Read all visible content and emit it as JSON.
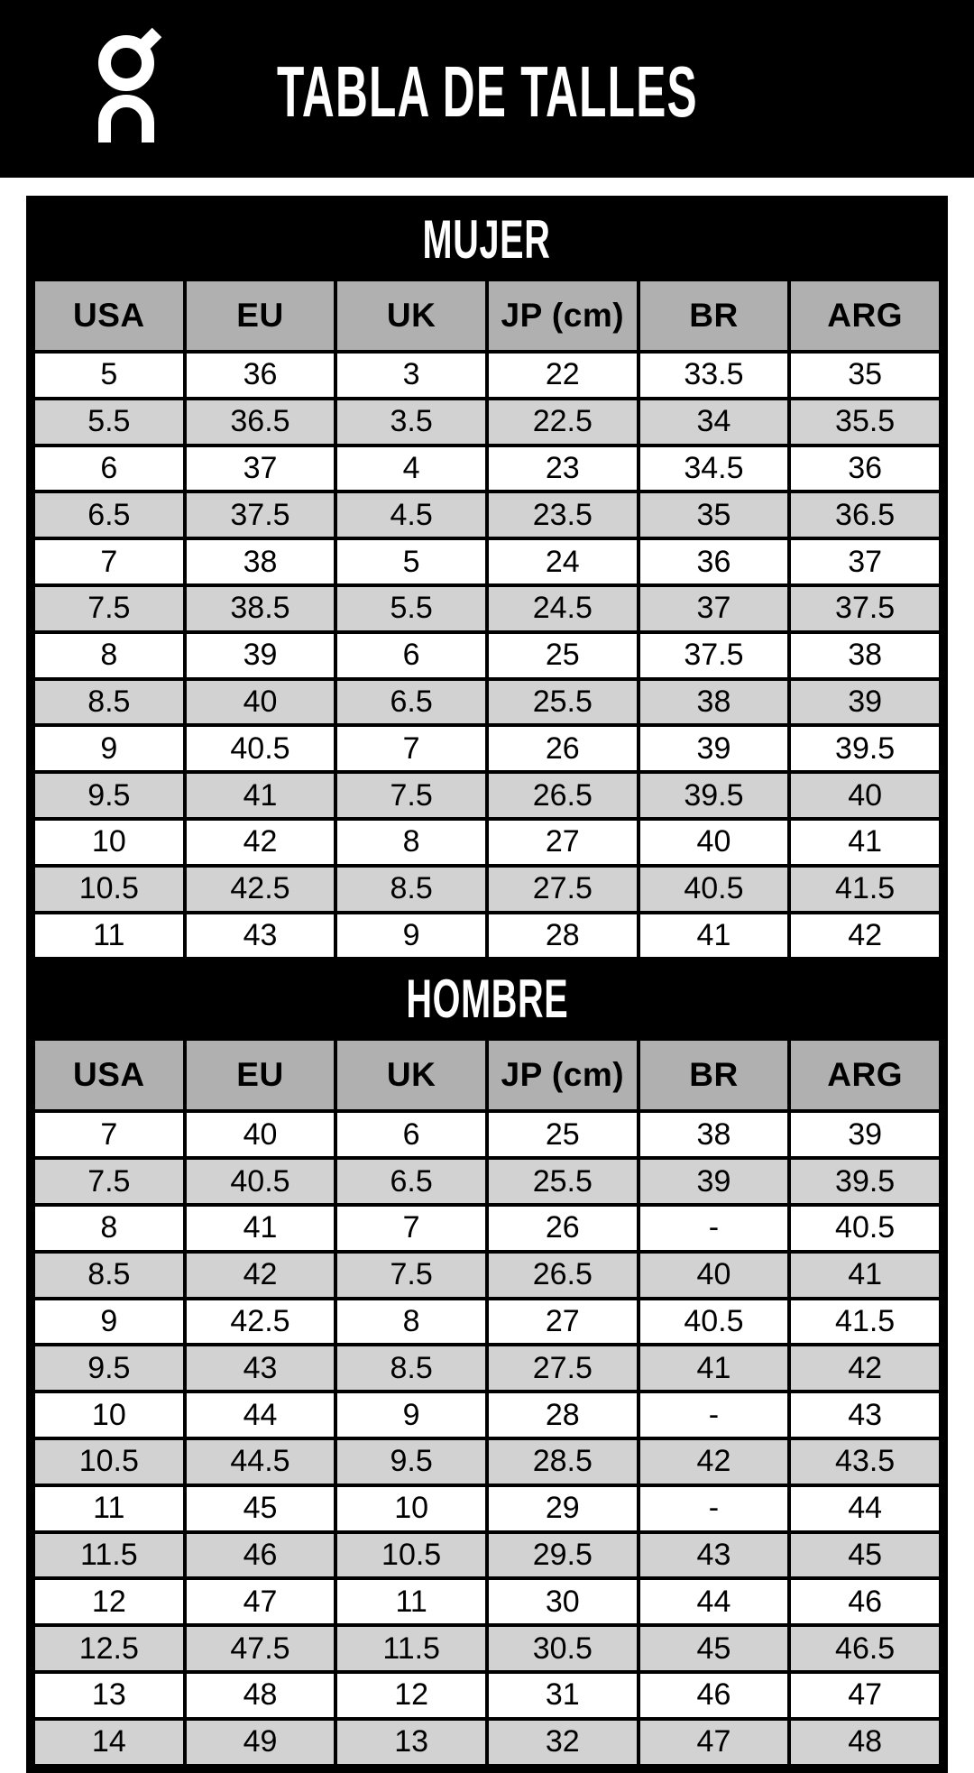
{
  "header": {
    "title": "TABLA DE TALLES",
    "logo_icon": "on-logo-icon"
  },
  "colors": {
    "background": "#ffffff",
    "bar_black": "#000000",
    "header_cell_gray": "#b0b0b0",
    "alt_row_gray": "#d2d2d2",
    "text_light": "#ffffff",
    "text_dark": "#000000"
  },
  "chart_data": [
    {
      "type": "table",
      "title": "MUJER",
      "columns": [
        "USA",
        "EU",
        "UK",
        "JP (cm)",
        "BR",
        "ARG"
      ],
      "rows": [
        [
          "5",
          "36",
          "3",
          "22",
          "33.5",
          "35"
        ],
        [
          "5.5",
          "36.5",
          "3.5",
          "22.5",
          "34",
          "35.5"
        ],
        [
          "6",
          "37",
          "4",
          "23",
          "34.5",
          "36"
        ],
        [
          "6.5",
          "37.5",
          "4.5",
          "23.5",
          "35",
          "36.5"
        ],
        [
          "7",
          "38",
          "5",
          "24",
          "36",
          "37"
        ],
        [
          "7.5",
          "38.5",
          "5.5",
          "24.5",
          "37",
          "37.5"
        ],
        [
          "8",
          "39",
          "6",
          "25",
          "37.5",
          "38"
        ],
        [
          "8.5",
          "40",
          "6.5",
          "25.5",
          "38",
          "39"
        ],
        [
          "9",
          "40.5",
          "7",
          "26",
          "39",
          "39.5"
        ],
        [
          "9.5",
          "41",
          "7.5",
          "26.5",
          "39.5",
          "40"
        ],
        [
          "10",
          "42",
          "8",
          "27",
          "40",
          "41"
        ],
        [
          "10.5",
          "42.5",
          "8.5",
          "27.5",
          "40.5",
          "41.5"
        ],
        [
          "11",
          "43",
          "9",
          "28",
          "41",
          "42"
        ]
      ]
    },
    {
      "type": "table",
      "title": "HOMBRE",
      "columns": [
        "USA",
        "EU",
        "UK",
        "JP (cm)",
        "BR",
        "ARG"
      ],
      "rows": [
        [
          "7",
          "40",
          "6",
          "25",
          "38",
          "39"
        ],
        [
          "7.5",
          "40.5",
          "6.5",
          "25.5",
          "39",
          "39.5"
        ],
        [
          "8",
          "41",
          "7",
          "26",
          "-",
          "40.5"
        ],
        [
          "8.5",
          "42",
          "7.5",
          "26.5",
          "40",
          "41"
        ],
        [
          "9",
          "42.5",
          "8",
          "27",
          "40.5",
          "41.5"
        ],
        [
          "9.5",
          "43",
          "8.5",
          "27.5",
          "41",
          "42"
        ],
        [
          "10",
          "44",
          "9",
          "28",
          "-",
          "43"
        ],
        [
          "10.5",
          "44.5",
          "9.5",
          "28.5",
          "42",
          "43.5"
        ],
        [
          "11",
          "45",
          "10",
          "29",
          "-",
          "44"
        ],
        [
          "11.5",
          "46",
          "10.5",
          "29.5",
          "43",
          "45"
        ],
        [
          "12",
          "47",
          "11",
          "30",
          "44",
          "46"
        ],
        [
          "12.5",
          "47.5",
          "11.5",
          "30.5",
          "45",
          "46.5"
        ],
        [
          "13",
          "48",
          "12",
          "31",
          "46",
          "47"
        ],
        [
          "14",
          "49",
          "13",
          "32",
          "47",
          "48"
        ]
      ]
    }
  ]
}
